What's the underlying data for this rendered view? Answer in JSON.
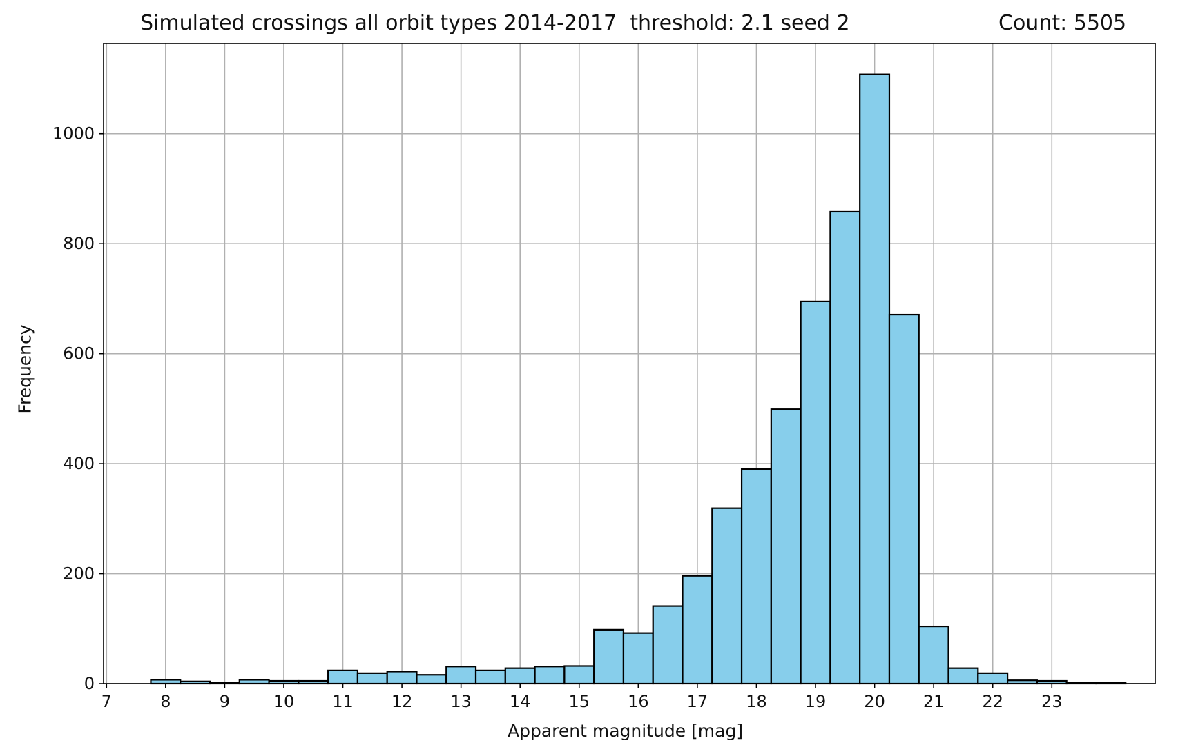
{
  "chart_data": {
    "type": "bar",
    "title": "Simulated crossings all orbit types 2014-2017  threshold: 2.1 seed 2",
    "count_label": "Count: 5505",
    "xlabel": "Apparent magnitude [mag]",
    "ylabel": "Frequency",
    "xlim": [
      6.95,
      24.75
    ],
    "ylim": [
      0,
      1164
    ],
    "xticks": [
      7,
      8,
      9,
      10,
      11,
      12,
      13,
      14,
      15,
      16,
      17,
      18,
      19,
      20,
      21,
      22,
      23
    ],
    "yticks": [
      0,
      200,
      400,
      600,
      800,
      1000
    ],
    "grid": true,
    "bar_color": "#87ceeb",
    "edge_color": "#000000",
    "bin_width": 0.5,
    "bin_edges_start": 7.75,
    "values": [
      7,
      4,
      2,
      7,
      5,
      5,
      24,
      19,
      22,
      16,
      31,
      24,
      28,
      31,
      32,
      98,
      92,
      141,
      196,
      319,
      390,
      499,
      695,
      858,
      1108,
      671,
      104,
      28,
      19,
      6,
      5,
      2,
      2
    ]
  }
}
